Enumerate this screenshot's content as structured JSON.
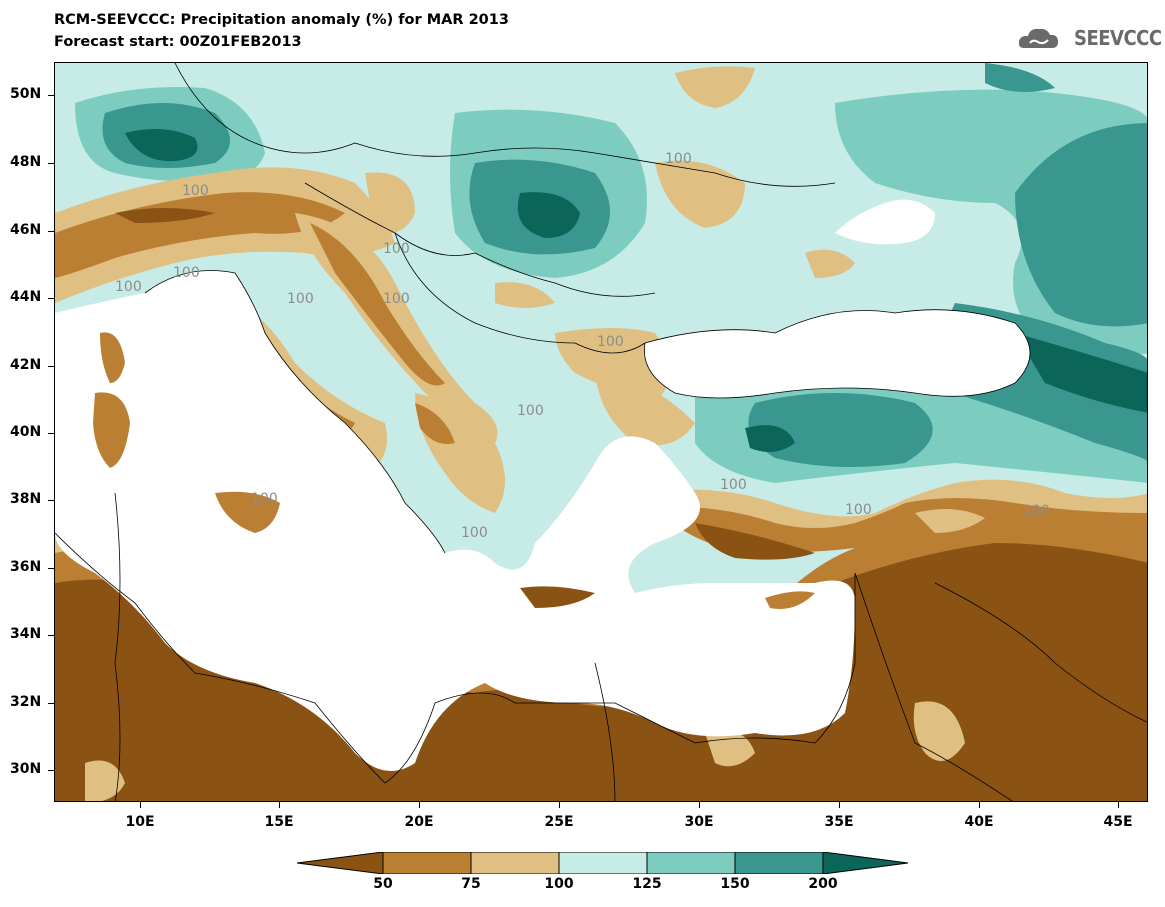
{
  "title": {
    "line1": "RCM-SEEVCCC: Precipitation anomaly (%) for MAR 2013",
    "line2": "Forecast start: 00Z01FEB2013"
  },
  "logo": {
    "text": "SEEVCCC",
    "icon": "cloud-icon"
  },
  "axes": {
    "lat_labels": [
      "50N",
      "48N",
      "46N",
      "44N",
      "42N",
      "40N",
      "38N",
      "36N",
      "34N",
      "32N",
      "30N"
    ],
    "lon_labels": [
      "10E",
      "15E",
      "20E",
      "25E",
      "30E",
      "35E",
      "40E",
      "45E"
    ]
  },
  "contour_labels": [
    "100",
    "100",
    "100",
    "100",
    "100",
    "100",
    "100",
    "100",
    "100",
    "100",
    "100",
    "100",
    "100",
    "100"
  ],
  "colorbar": {
    "ticks": [
      "50",
      "75",
      "100",
      "125",
      "150",
      "200"
    ],
    "colors": [
      "#8b5313",
      "#bb7f34",
      "#dfc082",
      "#c7ece7",
      "#7ccdbf",
      "#3a978f",
      "#0b6659"
    ]
  },
  "map_colors": {
    "sea": "#ffffff",
    "lt50": "#8b5313",
    "50_75": "#bb7f34",
    "75_100": "#dfc082",
    "100_125": "#c7ece7",
    "125_150": "#7ccdbf",
    "150_200": "#3a978f",
    "gt200": "#0b6659"
  }
}
